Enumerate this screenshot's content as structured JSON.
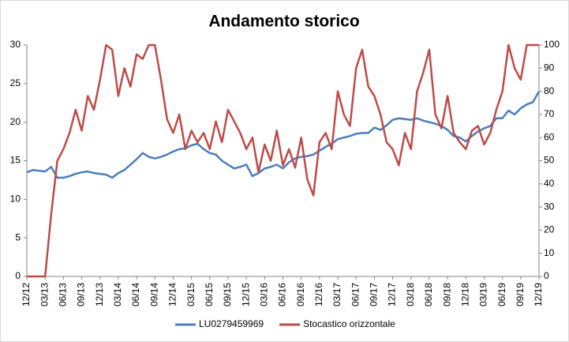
{
  "chart_data": {
    "type": "line",
    "title": "Andamento storico",
    "categories": [
      "12/12",
      null,
      null,
      "03/13",
      null,
      null,
      "06/13",
      null,
      null,
      "09/13",
      null,
      null,
      "12/13",
      null,
      null,
      "03/14",
      null,
      null,
      "06/14",
      null,
      null,
      "09/14",
      null,
      null,
      "12/14",
      null,
      null,
      "03/15",
      null,
      null,
      "06/15",
      null,
      null,
      "09/15",
      null,
      null,
      "12/15",
      null,
      null,
      "03/16",
      null,
      null,
      "06/16",
      null,
      null,
      "09/16",
      null,
      null,
      "12/16",
      null,
      null,
      "03/17",
      null,
      null,
      "06/17",
      null,
      null,
      "09/17",
      null,
      null,
      "12/17",
      null,
      null,
      "03/18",
      null,
      null,
      "06/18",
      null,
      null,
      "09/18",
      null,
      null,
      "12/18",
      null,
      null,
      "03/19",
      null,
      null,
      "06/19",
      null,
      null,
      "09/19",
      null,
      null,
      "12/19"
    ],
    "series": [
      {
        "name": "LU0279459969",
        "color": "#4a7ebb",
        "axis": "y",
        "values": [
          13.5,
          13.8,
          13.7,
          13.6,
          14.2,
          12.8,
          12.8,
          13.0,
          13.3,
          13.5,
          13.6,
          13.4,
          13.3,
          13.2,
          12.8,
          13.4,
          13.8,
          14.5,
          15.2,
          16.0,
          15.5,
          15.3,
          15.5,
          15.8,
          16.2,
          16.5,
          16.6,
          17.0,
          17.2,
          16.5,
          16.0,
          15.8,
          15.0,
          14.5,
          14.0,
          14.2,
          14.5,
          13.0,
          13.4,
          14.0,
          14.2,
          14.5,
          14.0,
          14.8,
          15.3,
          15.5,
          15.6,
          15.8,
          16.3,
          16.8,
          17.2,
          17.8,
          18.0,
          18.2,
          18.5,
          18.6,
          18.6,
          19.3,
          19.0,
          19.6,
          20.3,
          20.5,
          20.4,
          20.3,
          20.5,
          20.2,
          20.0,
          19.8,
          19.5,
          19.0,
          18.2,
          18.0,
          17.5,
          18.2,
          18.8,
          19.2,
          19.5,
          20.5,
          20.5,
          21.5,
          21.0,
          21.8,
          22.3,
          22.6,
          24.0
        ]
      },
      {
        "name": "Stocastico orizzontale",
        "color": "#be4b48",
        "axis": "y2",
        "values": [
          0,
          0,
          0,
          0,
          27,
          50,
          55,
          62,
          72,
          63,
          78,
          72,
          85,
          100,
          98,
          78,
          90,
          82,
          96,
          94,
          100,
          100,
          85,
          68,
          62,
          70,
          55,
          63,
          58,
          62,
          55,
          67,
          58,
          72,
          67,
          62,
          55,
          60,
          45,
          57,
          50,
          63,
          48,
          55,
          47,
          60,
          42,
          35,
          58,
          62,
          55,
          80,
          70,
          65,
          90,
          98,
          82,
          78,
          70,
          58,
          55,
          48,
          62,
          55,
          80,
          88,
          98,
          70,
          64,
          78,
          62,
          58,
          55,
          63,
          65,
          57,
          62,
          72,
          80,
          100,
          90,
          85,
          100,
          100,
          100
        ]
      }
    ],
    "ylim": [
      0,
      30
    ],
    "yticks": [
      0,
      5,
      10,
      15,
      20,
      25,
      30
    ],
    "y2lim": [
      0,
      100
    ],
    "y2ticks": [
      0,
      10,
      20,
      30,
      40,
      50,
      60,
      70,
      80,
      90,
      100
    ],
    "legend": "bottom"
  }
}
